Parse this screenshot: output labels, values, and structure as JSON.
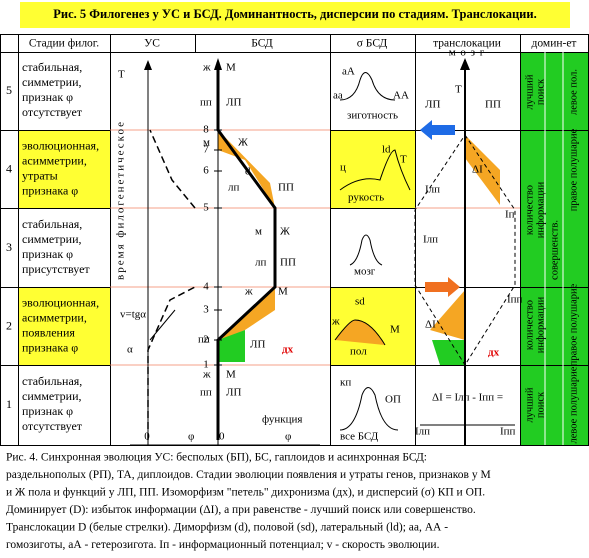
{
  "title": "Рис. 5  Филогенез у УС и БСД. Доминантность, дисперсии по стадиям. Транслокации.",
  "header": [
    "Стадии филог.",
    "УС",
    "БСД",
    "σ БСД",
    "транслокации",
    "домин-ет"
  ],
  "stages": [
    {
      "number": "5",
      "lines": [
        "стабильная,",
        "симметрии,",
        "признак  φ",
        "отсутствует"
      ]
    },
    {
      "number": "4",
      "lines": [
        "эволюционная,",
        "асимметрии,",
        "утраты",
        "признака φ"
      ]
    },
    {
      "number": "3",
      "lines": [
        "стабильная,",
        "симметрии,",
        "признак  φ",
        "присутствует"
      ]
    },
    {
      "number": "2",
      "lines": [
        "эволюционная,",
        "асимметрии,",
        "появления",
        "признака φ"
      ]
    },
    {
      "number": "1",
      "lines": [
        "стабильная,",
        "симметрии,",
        "признак  φ",
        "отсутствует"
      ]
    }
  ],
  "us_labels": [
    "Т",
    "время филогенетическое",
    "v=tgα",
    "α",
    "0",
    "φ"
  ],
  "time_ticks": [
    "1",
    "2",
    "3",
    "4",
    "5",
    "6",
    "7",
    "8"
  ],
  "bsd_labels": [
    "ж",
    "М",
    "пп",
    "ЛП",
    "м",
    "Ж",
    "d",
    "лп",
    "ПП",
    "м",
    "Ж",
    "лп",
    "ПП",
    "ж",
    "М",
    "пп",
    "ЛП",
    "дх",
    "ж",
    "М",
    "пп",
    "ЛП",
    "функция",
    "0",
    "φ"
  ],
  "sigma_labels": [
    "аА",
    "аа",
    "АА",
    "зиготность",
    "ld",
    "ц",
    "Т",
    "рукость",
    "мозг",
    "sd",
    "ж",
    "М",
    "пол",
    "кп",
    "все  БСД",
    "ОП"
  ],
  "trans_labels": [
    "м о з г",
    "Т",
    "ЛП",
    "ПП",
    "ΔI",
    "Iлп",
    "Iп",
    "Iлп",
    "ΔI",
    "Iпп",
    "дх",
    "ΔI = Iлп - Iпп =",
    "Iлп",
    "Iпп"
  ],
  "dominance": [
    "лучший",
    "поиск",
    "левое пол.",
    "количество",
    "информации",
    "совершенств.",
    "правое полушарие",
    "количество",
    "информации",
    "правое полушарие",
    "лучший",
    "поиск",
    "левое полушарие"
  ],
  "caption": [
    "Рис. 4. Синхронная эволюция УС: бесполых (БП), БС, гаплоидов и асинхронная БСД:",
    "раздельнополых (РП), ТА, диплоидов. Стадии  эволюции появления и утраты генов, признаков у М",
    "и Ж  пола и функций у ЛП, ПП. Изоморфизм \"петель\" дихронизма (дх), и дисперсий (σ)  КП и ОП.",
    "Доминирует (D): избыток информации (ΔI),  а при равенстве - лучший поиск или совершенство.",
    "Транслокации D (белые стрелки). Диморфизм (d), половой (sd), латеральный (ld); аа, АА -",
    "гомозиготы, аА - гетерозигота. Iп - информационный потенциал; v - скорость эволюции."
  ]
}
